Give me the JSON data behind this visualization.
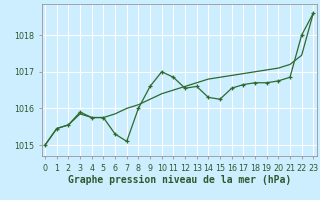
{
  "title": "Graphe pression niveau de la mer (hPa)",
  "xlabel_hours": [
    0,
    1,
    2,
    3,
    4,
    5,
    6,
    7,
    8,
    9,
    10,
    11,
    12,
    13,
    14,
    15,
    16,
    17,
    18,
    19,
    20,
    21,
    22,
    23
  ],
  "line1_y": [
    1015.0,
    1015.45,
    1015.55,
    1015.9,
    1015.75,
    1015.75,
    1015.3,
    1015.1,
    1016.0,
    1016.6,
    1017.0,
    1016.85,
    1016.55,
    1016.6,
    1016.3,
    1016.25,
    1016.55,
    1016.65,
    1016.7,
    1016.7,
    1016.75,
    1016.85,
    1018.0,
    1018.6
  ],
  "line2_y": [
    1015.0,
    1015.45,
    1015.55,
    1015.85,
    1015.75,
    1015.75,
    1015.85,
    1016.0,
    1016.1,
    1016.25,
    1016.4,
    1016.5,
    1016.6,
    1016.7,
    1016.8,
    1016.85,
    1016.9,
    1016.95,
    1017.0,
    1017.05,
    1017.1,
    1017.2,
    1017.45,
    1018.6
  ],
  "line1_color": "#2d6a2d",
  "line2_color": "#2d6a2d",
  "bg_color": "#cceeff",
  "grid_color": "#ffffff",
  "text_color": "#2d5a2d",
  "ylim": [
    1014.7,
    1018.85
  ],
  "yticks": [
    1015,
    1016,
    1017,
    1018
  ],
  "title_fontsize": 7.0,
  "tick_fontsize": 5.8
}
